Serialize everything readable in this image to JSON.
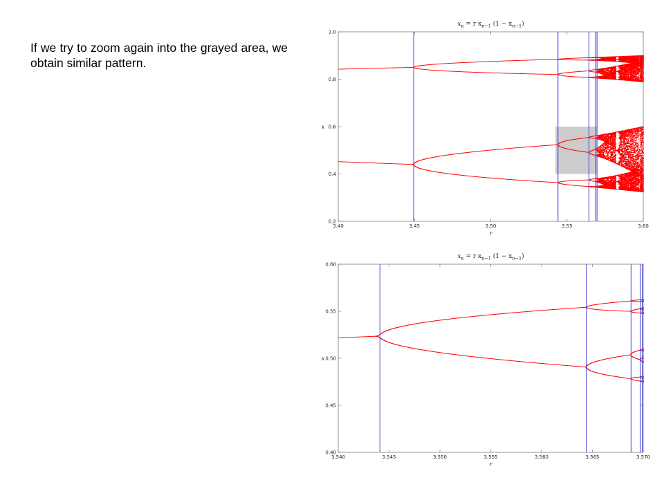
{
  "caption": "If we try to zoom again into the grayed area, we obtain similar pattern.",
  "colors": {
    "branch": "#ff0000",
    "bifurcation_line": "#4a4adf",
    "highlight": "#cccccc",
    "frame": "#7a7a7a"
  },
  "chart_data": [
    {
      "type": "line",
      "title": "x_n = r x_{n-1} (1 − x_{n-1})",
      "title_parts": {
        "lhs": "x",
        "lhs_sub": "n",
        "eq": " = r x",
        "sub1": "n−1",
        "mid": " (1 − x",
        "sub2": "n−1",
        "end": ")"
      },
      "xlabel": "r",
      "ylabel": "x",
      "xlim": [
        3.4,
        3.6
      ],
      "ylim": [
        0.2,
        1.0
      ],
      "xticks": [
        "3.40",
        "3.45",
        "3.50",
        "3.55",
        "3.60"
      ],
      "yticks": [
        "0.2",
        "0.4",
        "0.6",
        "0.8",
        "1.0"
      ],
      "bifurcation_lines": [
        3.4495,
        3.5441,
        3.5644,
        3.5688,
        3.5697
      ],
      "highlight_region": {
        "x": [
          3.5425,
          3.5695
        ],
        "y": [
          0.4,
          0.6
        ]
      },
      "chaos_onset": 3.5699
    },
    {
      "type": "line",
      "title": "x_n = r x_{n-1} (1 − x_{n-1})",
      "title_parts": {
        "lhs": "x",
        "lhs_sub": "n",
        "eq": " = r x",
        "sub1": "n−1",
        "mid": " (1 − x",
        "sub2": "n−1",
        "end": ")"
      },
      "xlabel": "r",
      "ylabel": "x",
      "xlim": [
        3.54,
        3.57
      ],
      "ylim": [
        0.4,
        0.6
      ],
      "xticks": [
        "3.540",
        "3.545",
        "3.550",
        "3.555",
        "3.560",
        "3.565",
        "3.570"
      ],
      "yticks": [
        "0.40",
        "0.45",
        "0.50",
        "0.55",
        "0.60"
      ],
      "bifurcation_lines": [
        3.5441,
        3.5644,
        3.5688,
        3.5697,
        3.5699
      ],
      "chaos_onset": 3.5699
    }
  ]
}
